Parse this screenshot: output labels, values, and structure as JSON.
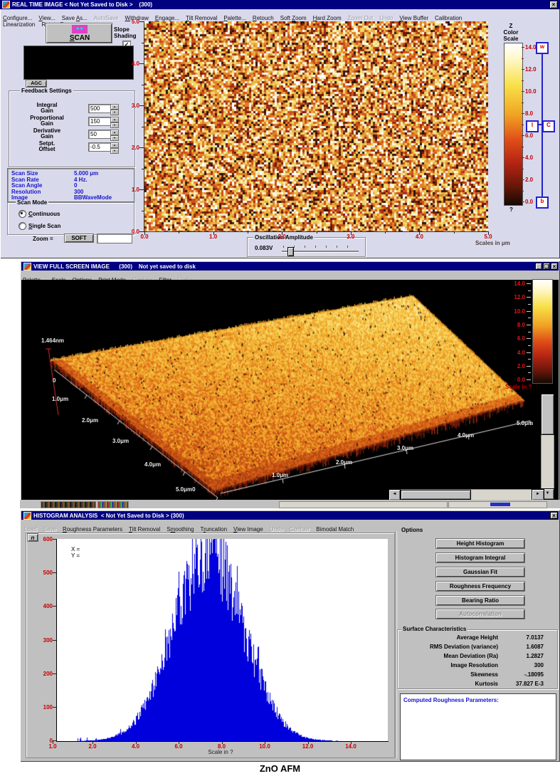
{
  "chrome": {
    "close": "×",
    "min": "_",
    "max": "❏"
  },
  "caption": "ZnO AFM",
  "colors": {
    "titlebar": "#000080",
    "histogram_bar": "#0000dd",
    "tick_label": "#c40000",
    "info_text": "#1616cc",
    "surface_hot": "#f8c850",
    "surface_edge": "#b03810"
  },
  "realtime": {
    "title": "REAL TIME IMAGE < Not Yet Saved to Disk >    (300)",
    "menu1": [
      {
        "label": "Configure...",
        "u": 0
      },
      {
        "label": "View...",
        "u": 0
      },
      {
        "label": "Save As...",
        "u": 5
      },
      {
        "label": "AutoSave",
        "u": -1,
        "disabled": true
      },
      {
        "label": "Withdraw",
        "u": 0
      },
      {
        "label": "Engage...",
        "u": 0
      },
      {
        "label": "Tilt Removal",
        "u": 0
      },
      {
        "label": "Palette...",
        "u": 0
      },
      {
        "label": "Retouch",
        "u": 0
      },
      {
        "label": "Soft Zoom",
        "u": 5
      },
      {
        "label": "Hard Zoom",
        "u": 0
      },
      {
        "label": "Zoom Out",
        "u": -1,
        "disabled": true
      },
      {
        "label": "Undo",
        "u": -1,
        "disabled": true
      },
      {
        "label": "View Buffer",
        "u": 0
      },
      {
        "label": "Calibration",
        "u": -1
      }
    ],
    "menu2": [
      {
        "label": "Linearization",
        "u": -1
      },
      {
        "label": "Rotate Scan",
        "u": -1
      }
    ],
    "scan_button": "SCAN",
    "slope_shading": "Slope Shading",
    "agc": "AGC",
    "feedback": {
      "title": "Feedback Settings",
      "fields": [
        {
          "label": "Integral Gain",
          "value": "500"
        },
        {
          "label": "Proportional Gain",
          "value": "150"
        },
        {
          "label": "Derivative Gain",
          "value": "50"
        },
        {
          "label": "Setpt. Offset",
          "value": "-0.5"
        }
      ]
    },
    "info": [
      {
        "label": "Scan Size",
        "value": "5.000 μm"
      },
      {
        "label": "Scan Rate",
        "value": "4 Hz."
      },
      {
        "label": "Scan Angle",
        "value": "0"
      },
      {
        "label": "Resolution",
        "value": "300"
      },
      {
        "label": "Image",
        "value": "BBWaveMode"
      }
    ],
    "scan_mode": {
      "title": "Scan Mode",
      "options": [
        {
          "label": "Continuous",
          "u": 0,
          "selected": true
        },
        {
          "label": "Single Scan",
          "u": 0,
          "selected": false
        }
      ]
    },
    "zoom_label": "Zoom =",
    "zoom_button": "SOFT",
    "zoom_value": "",
    "y_ticks": [
      "5.0",
      "4.0",
      "3.0",
      "2.0",
      "1.0",
      "0.0"
    ],
    "x_ticks": [
      "0.0",
      "1.0",
      "2.0",
      "3.0",
      "4.0",
      "5.0"
    ],
    "colorscale": {
      "lines": [
        "Z",
        "Color",
        "Scale"
      ],
      "ticks": [
        "14.0",
        "12.0",
        "10.0",
        "8.0",
        "6.0",
        "4.0",
        "2.0",
        "0.0"
      ],
      "unknown": "?"
    },
    "slider": {
      "top": "w",
      "mid_left": "I",
      "mid_right": "C",
      "bottom": "b"
    },
    "osc": {
      "title": "Oscillation Amplitude",
      "value": "0.083V"
    },
    "scales_label": "Scales in μm"
  },
  "view3d": {
    "title": "VIEW FULL SCREEN IMAGE      (300)    Not yet saved to disk",
    "menu": [
      {
        "label": "Palette...",
        "u": 0
      },
      {
        "label": "Scale",
        "u": 0
      },
      {
        "label": "Options",
        "u": 0
      },
      {
        "label": "Print Mode",
        "u": 0
      },
      {
        "label": "Contour",
        "u": -1,
        "disabled": true
      },
      {
        "label": "Filter",
        "u": 0
      },
      {
        "label": "Undo",
        "u": -1,
        "disabled": true
      }
    ],
    "colorscale_ticks": [
      "14.0",
      "12.0",
      "10.0",
      "8.0",
      "6.0",
      "4.0",
      "2.0",
      "0.0"
    ],
    "scale_label": "Scale in ?",
    "z_label": "1.464nm",
    "origin_label": "0",
    "left_axis": [
      "1.0μm",
      "2.0μm",
      "3.0μm",
      "4.0μm",
      "5.0μm0"
    ],
    "right_axis": [
      "1.0μm",
      "2.0μm",
      "3.0μm",
      "4.0μm",
      "5.0μm"
    ]
  },
  "histogram": {
    "title": "HISTOGRAM ANALYSIS  < Not Yet Saved to Disk > (300)",
    "menu": [
      {
        "label": "Load",
        "u": -1,
        "disabled": true
      },
      {
        "label": "Save",
        "u": -1,
        "disabled": true
      },
      {
        "label": "Roughness Parameters",
        "u": 0
      },
      {
        "label": "Tilt Removal",
        "u": 0
      },
      {
        "label": "Smoothing",
        "u": 1
      },
      {
        "label": "Truncation",
        "u": 1
      },
      {
        "label": "View Image",
        "u": 0
      },
      {
        "label": "Undo",
        "u": -1,
        "disabled": true
      },
      {
        "label": "Contour",
        "u": -1,
        "disabled": true
      },
      {
        "label": "Bimodal Match",
        "u": -1
      }
    ],
    "corner_button": "n",
    "cursor_x": "X =",
    "cursor_y": "Y =",
    "options": {
      "title": "Options",
      "buttons": [
        {
          "label": "Height Histogram"
        },
        {
          "label": "Histogram Integral"
        },
        {
          "label": "Gaussian Fit"
        },
        {
          "label": "Roughness Frequency"
        },
        {
          "label": "Bearing Ratio"
        },
        {
          "label": "Autocorrelation",
          "disabled": true
        }
      ]
    },
    "surface": {
      "title": "Surface Characteristics",
      "rows": [
        {
          "label": "Average Height",
          "value": "7.0137"
        },
        {
          "label": "RMS Deviation (variance)",
          "value": "1.6087"
        },
        {
          "label": "Mean Deviation (Ra)",
          "value": "1.2827"
        },
        {
          "label": "Image Resolution",
          "value": "300"
        },
        {
          "label": "Skewness",
          "value": "-.18095"
        },
        {
          "label": "Kurtosis",
          "value": "37.827 E-3"
        }
      ]
    },
    "computed_title": "Computed Roughness Parameters:"
  },
  "chart_data": {
    "type": "histogram",
    "title": "",
    "xlabel": "Scale in ?",
    "x_tick_labels": [
      "1.0",
      "2.0",
      "4.0",
      "6.0",
      "8.0",
      "10.0",
      "12.0",
      "14.0"
    ],
    "x_tick_values": [
      1,
      2,
      4,
      6,
      8,
      10,
      12,
      14
    ],
    "y_tick_labels": [
      "600",
      "500",
      "400",
      "300",
      "200",
      "100",
      "0"
    ],
    "y_ticks": [
      600,
      500,
      400,
      300,
      200,
      100,
      0
    ],
    "xlim": [
      0.35,
      15.7
    ],
    "ylim": [
      0,
      610
    ],
    "bar_color": "#0000dd",
    "distribution": {
      "shape": "gaussian",
      "center": 7.38,
      "sigma": 1.62,
      "peak": 600,
      "x_start": 1.55,
      "x_end": 13.6,
      "noise": 0.2
    },
    "envelope": [
      [
        2,
        10
      ],
      [
        3,
        35
      ],
      [
        4,
        110
      ],
      [
        5,
        230
      ],
      [
        6,
        370
      ],
      [
        6.5,
        445
      ],
      [
        7,
        540
      ],
      [
        7.4,
        600
      ],
      [
        8,
        540
      ],
      [
        8.5,
        450
      ],
      [
        9,
        350
      ],
      [
        10,
        160
      ],
      [
        11,
        45
      ],
      [
        12,
        8
      ],
      [
        13,
        4
      ]
    ]
  }
}
